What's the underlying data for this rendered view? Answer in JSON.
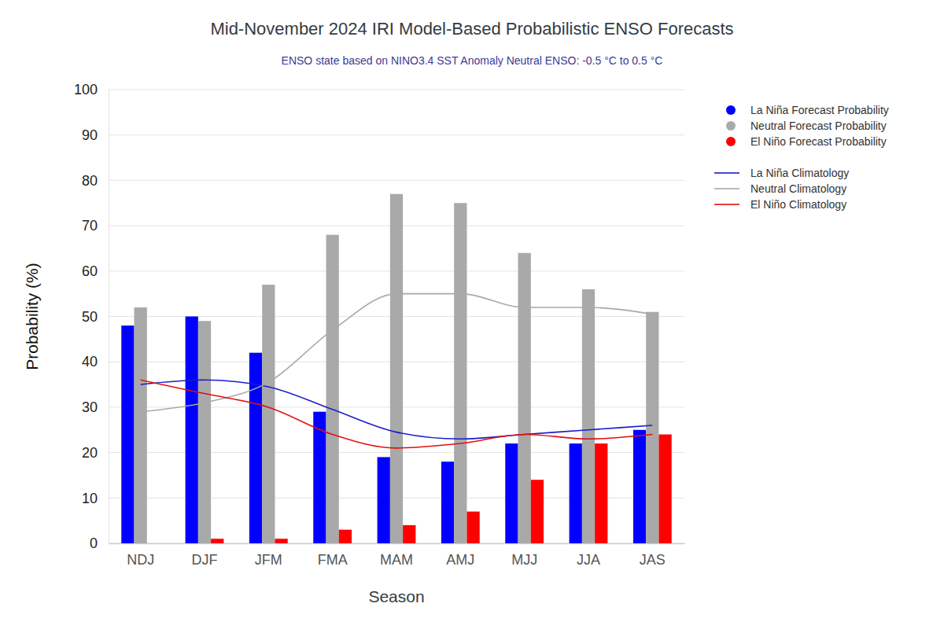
{
  "chart_data": {
    "type": "bar",
    "title": "Mid-November 2024 IRI Model-Based Probabilistic ENSO Forecasts",
    "subtitle": "ENSO state based on NINO3.4 SST Anomaly Neutral ENSO: -0.5 °C to 0.5 °C",
    "x_label": "Season",
    "y_label": "Probability (%)",
    "categories": [
      "NDJ",
      "DJF",
      "JFM",
      "FMA",
      "MAM",
      "AMJ",
      "MJJ",
      "JJA",
      "JAS"
    ],
    "ylim": [
      0,
      100
    ],
    "yticks": [
      0,
      10,
      20,
      30,
      40,
      50,
      60,
      70,
      80,
      90,
      100
    ],
    "grid": true,
    "legend": "top-right",
    "series": [
      {
        "name": "La Niña Forecast Probability",
        "type": "bar",
        "color": "#0000ff",
        "values": [
          48,
          50,
          42,
          29,
          19,
          18,
          22,
          22,
          25
        ]
      },
      {
        "name": "Neutral Forecast Probability",
        "type": "bar",
        "color": "#a9a9a9",
        "values": [
          52,
          49,
          57,
          68,
          77,
          75,
          64,
          56,
          51
        ]
      },
      {
        "name": "El Niño Forecast Probability",
        "type": "bar",
        "color": "#ff0000",
        "values": [
          0,
          1,
          1,
          3,
          4,
          7,
          14,
          22,
          24
        ]
      },
      {
        "name": "La Niña Climatology",
        "type": "line",
        "color": "#1c1ccf",
        "values": [
          35,
          36,
          34.5,
          29.5,
          24.5,
          23,
          24,
          25,
          26
        ]
      },
      {
        "name": "Neutral Climatology",
        "type": "line",
        "color": "#a9a9a9",
        "values": [
          29,
          31,
          35.5,
          47,
          55,
          55,
          52,
          52,
          50.5
        ]
      },
      {
        "name": "El Niño Climatology",
        "type": "line",
        "color": "#e01010",
        "values": [
          36,
          33,
          30,
          24,
          21,
          22,
          24,
          23,
          24
        ]
      }
    ]
  }
}
